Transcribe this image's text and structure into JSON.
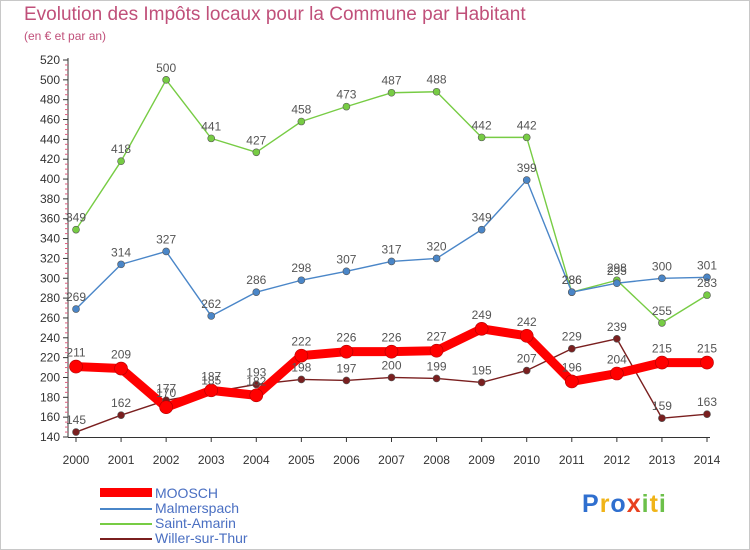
{
  "title": "Evolution des Impôts locaux pour la Commune par Habitant",
  "subtitle": "(en € et par an)",
  "logo": {
    "text": "Proxiti",
    "letters": [
      {
        "ch": "P",
        "color": "#2f6fcf"
      },
      {
        "ch": "r",
        "color": "#f0b418"
      },
      {
        "ch": "o",
        "color": "#2f6fcf"
      },
      {
        "ch": "x",
        "color": "#e8411f"
      },
      {
        "ch": "i",
        "color": "#6cc04a"
      },
      {
        "ch": "t",
        "color": "#f0b418"
      },
      {
        "ch": "i",
        "color": "#6cc04a"
      }
    ]
  },
  "chart_data": {
    "type": "line",
    "title": "Evolution des Impôts locaux pour la Commune par Habitant",
    "ylabel": "(en € et par an)",
    "xlabel": "",
    "ylim": [
      140,
      520
    ],
    "ytick_step": 20,
    "grid": false,
    "legend_position": "bottom-left",
    "x": [
      "2000",
      "2001",
      "2002",
      "2003",
      "2004",
      "2005",
      "2006",
      "2007",
      "2008",
      "2009",
      "2010",
      "2011",
      "2012",
      "2013",
      "2014"
    ],
    "series": [
      {
        "name": "MOOSCH",
        "color": "#ff0000",
        "values": [
          211,
          209,
          170,
          187,
          182,
          222,
          226,
          226,
          227,
          249,
          242,
          196,
          204,
          215,
          215
        ]
      },
      {
        "name": "Malmerspach",
        "color": "#4a86c8",
        "values": [
          269,
          314,
          327,
          262,
          286,
          298,
          307,
          317,
          320,
          349,
          399,
          286,
          295,
          300,
          301
        ]
      },
      {
        "name": "Saint-Amarin",
        "color": "#77cc44",
        "values": [
          349,
          418,
          500,
          441,
          427,
          458,
          473,
          487,
          488,
          442,
          442,
          286,
          298,
          255,
          283
        ]
      },
      {
        "name": "Willer-sur-Thur",
        "color": "#7a1f1f",
        "values": [
          145,
          162,
          177,
          185,
          193,
          198,
          197,
          200,
          199,
          195,
          207,
          229,
          239,
          159,
          163
        ]
      }
    ]
  }
}
